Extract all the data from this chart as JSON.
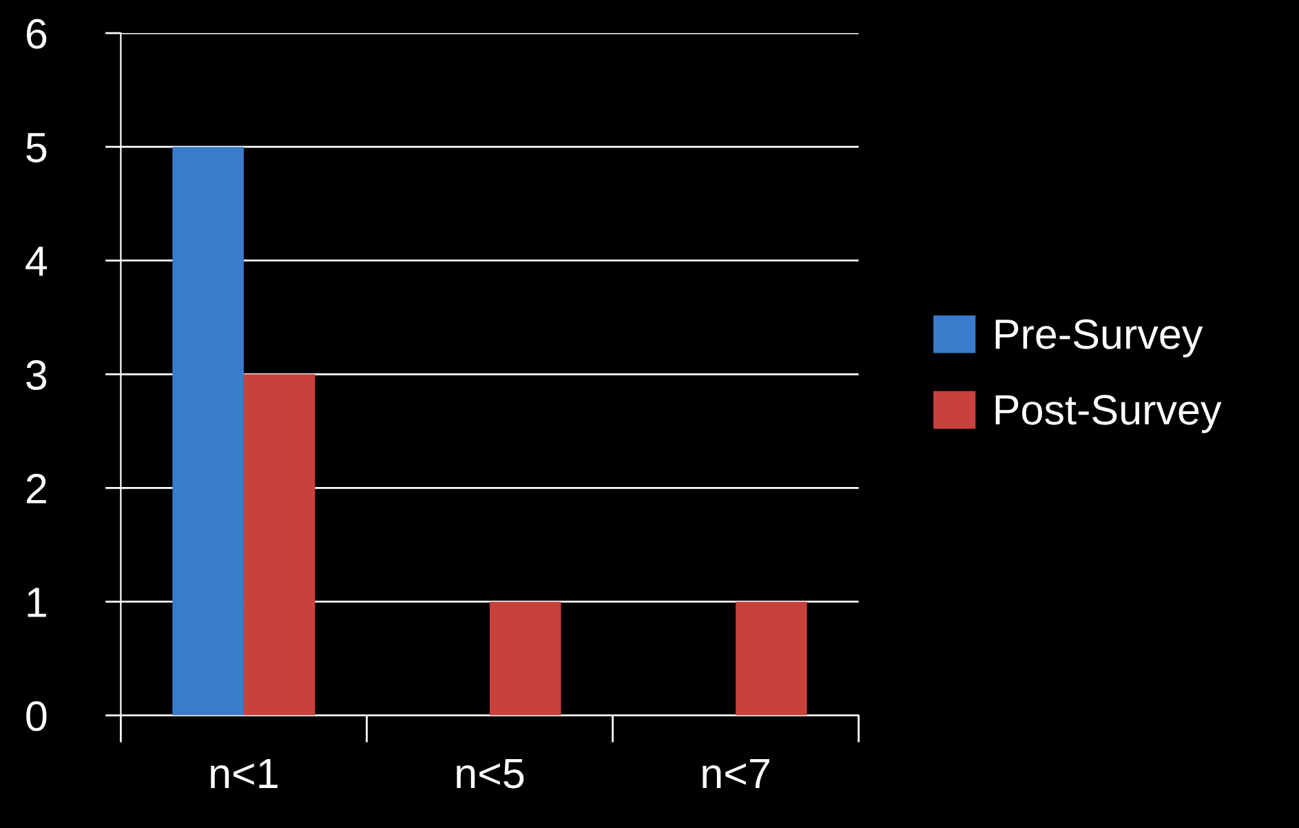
{
  "chart_data": {
    "type": "bar",
    "categories": [
      "n<1",
      "n<5",
      "n<7"
    ],
    "series": [
      {
        "name": "Pre-Survey",
        "color": "#3b7bcc",
        "values": [
          5,
          0,
          0
        ]
      },
      {
        "name": "Post-Survey",
        "color": "#c9413c",
        "values": [
          3,
          1,
          1
        ]
      }
    ],
    "ylim": [
      0,
      6
    ],
    "yticks": [
      0,
      1,
      2,
      3,
      4,
      5,
      6
    ],
    "grid": "y",
    "legend": "right"
  }
}
